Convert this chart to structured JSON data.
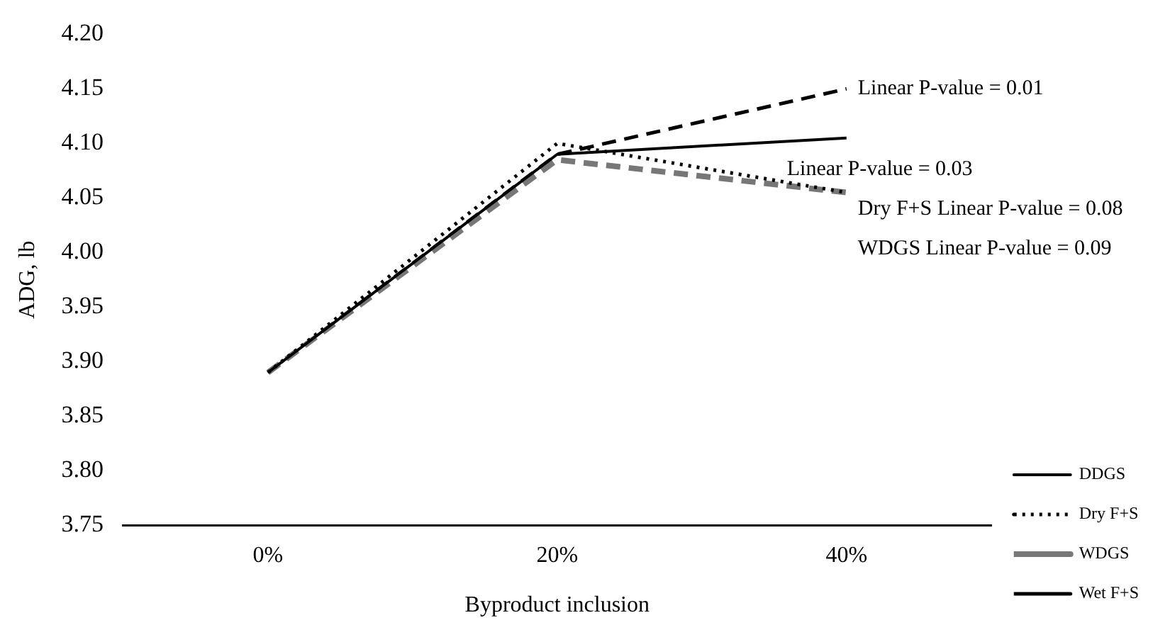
{
  "chart_data": {
    "type": "line",
    "xlabel": "Byproduct inclusion",
    "ylabel": "ADG, lb",
    "categories": [
      "0%",
      "20%",
      "40%"
    ],
    "series": [
      {
        "name": "DDGS",
        "color": "#000000",
        "line_style": "solid",
        "values": [
          3.89,
          4.09,
          4.105
        ]
      },
      {
        "name": "Dry F+S",
        "color": "#000000",
        "line_style": "dotted",
        "values": [
          3.89,
          4.1,
          4.055
        ]
      },
      {
        "name": "WDGS",
        "color": "#777777",
        "line_style": "dashed",
        "values": [
          3.89,
          4.085,
          4.055
        ]
      },
      {
        "name": "Wet F+S",
        "color": "#000000",
        "line_style": "dashed",
        "values": [
          3.89,
          4.09,
          4.15
        ]
      }
    ],
    "ylim": [
      3.75,
      4.2
    ],
    "yticks": [
      3.75,
      {
        "value": 3.8,
        "label": "3.80"
      },
      3.85,
      {
        "value": 3.9,
        "label": "3.90"
      },
      3.95,
      {
        "value": 4.0,
        "label": "4.00"
      },
      4.05,
      {
        "value": 4.1,
        "label": "4.10"
      },
      4.15,
      {
        "value": 4.2,
        "label": "4.20"
      }
    ],
    "grid": false,
    "legend": "bottom right",
    "marker": "none",
    "annotations": [
      {
        "text": "Linear P-value = 0.01",
        "x": "40%",
        "y": 4.15
      },
      {
        "text": "Linear P-value = 0.03",
        "x": "40%",
        "y": 4.105
      },
      {
        "text": "Dry F+S Linear P-value = 0.08",
        "x": "40%",
        "y": 4.055
      },
      {
        "text": "WDGS Linear P-value = 0.09",
        "x": "40%",
        "y": 4.055
      }
    ]
  }
}
